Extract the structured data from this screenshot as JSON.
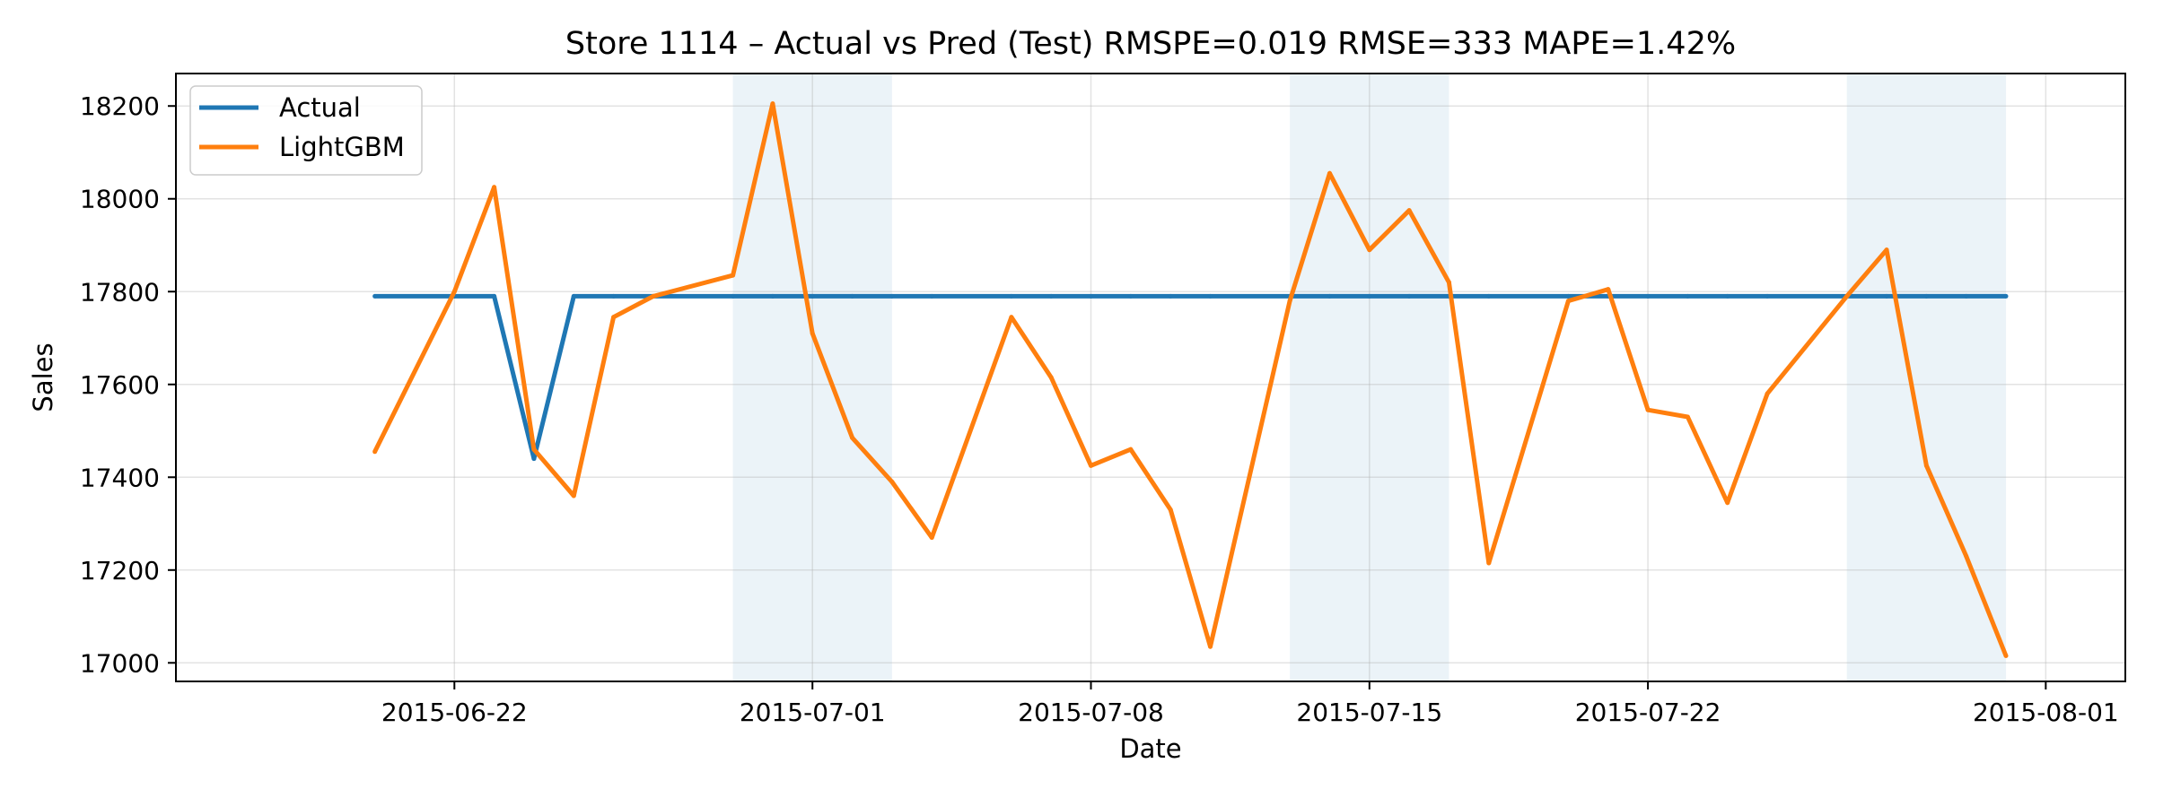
{
  "chart_data": {
    "type": "line",
    "title": "Store 1114 – Actual vs Pred (Test)  RMSPE=0.019  RMSE=333  MAPE=1.42%",
    "xlabel": "Date",
    "ylabel": "Sales",
    "x_axis": {
      "type": "date",
      "range": [
        "2015-06-15",
        "2015-08-03"
      ],
      "ticks": [
        "2015-06-22",
        "2015-07-01",
        "2015-07-08",
        "2015-07-15",
        "2015-07-22",
        "2015-08-01"
      ]
    },
    "ylim": [
      16960,
      18270
    ],
    "yticks": [
      17000,
      17200,
      17400,
      17600,
      17800,
      18000,
      18200
    ],
    "grid": true,
    "legend_position": "top-left",
    "shaded_periods": [
      [
        "2015-06-29",
        "2015-07-03"
      ],
      [
        "2015-07-13",
        "2015-07-17"
      ],
      [
        "2015-07-27",
        "2015-07-31"
      ]
    ],
    "x": [
      "2015-06-20",
      "2015-06-22",
      "2015-06-23",
      "2015-06-24",
      "2015-06-25",
      "2015-06-26",
      "2015-06-27",
      "2015-06-29",
      "2015-06-30",
      "2015-07-01",
      "2015-07-02",
      "2015-07-03",
      "2015-07-04",
      "2015-07-06",
      "2015-07-07",
      "2015-07-08",
      "2015-07-09",
      "2015-07-10",
      "2015-07-11",
      "2015-07-13",
      "2015-07-14",
      "2015-07-15",
      "2015-07-16",
      "2015-07-17",
      "2015-07-18",
      "2015-07-20",
      "2015-07-21",
      "2015-07-22",
      "2015-07-23",
      "2015-07-24",
      "2015-07-25",
      "2015-07-27",
      "2015-07-28",
      "2015-07-29",
      "2015-07-30",
      "2015-07-31"
    ],
    "series": [
      {
        "name": "Actual",
        "color": "#1f77b4",
        "values": [
          17790,
          17790,
          17790,
          17440,
          17790,
          17790,
          17790,
          17790,
          17790,
          17790,
          17790,
          17790,
          17790,
          17790,
          17790,
          17790,
          17790,
          17790,
          17790,
          17790,
          17790,
          17790,
          17790,
          17790,
          17790,
          17790,
          17790,
          17790,
          17790,
          17790,
          17790,
          17790,
          17790,
          17790,
          17790,
          17790
        ]
      },
      {
        "name": "LightGBM",
        "color": "#ff7f0e",
        "values": [
          17455,
          17800,
          18025,
          17460,
          17360,
          17745,
          17790,
          17835,
          18205,
          17710,
          17485,
          17390,
          17270,
          17745,
          17615,
          17425,
          17460,
          17330,
          17035,
          17780,
          18055,
          17890,
          17975,
          17820,
          17215,
          17780,
          17805,
          17545,
          17530,
          17345,
          17580,
          17790,
          17890,
          17425,
          17230,
          17015
        ]
      }
    ]
  }
}
